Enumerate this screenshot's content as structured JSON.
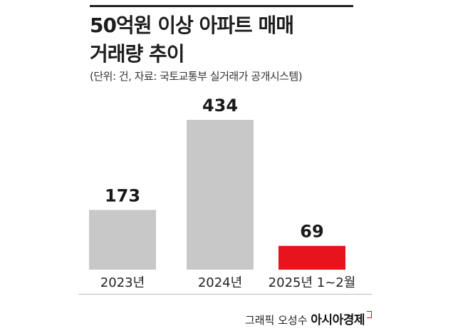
{
  "title_lines": [
    "50억원 이상 아파트 매매",
    "거래량 추이"
  ],
  "subtitle": "(단위: 건, 자료: 국토교통부 실거래가 공개시스템)",
  "credit": {
    "prefix": "그래픽 오성수",
    "brand": "아시아경제"
  },
  "colors": {
    "bar_default": "#c8c8c8",
    "bar_highlight": "#e8141b"
  },
  "chart_data": {
    "type": "bar",
    "title": "50억원 이상 아파트 매매 거래량 추이",
    "subtitle": "(단위: 건, 자료: 국토교통부 실거래가 공개시스템)",
    "categories": [
      "2023년",
      "2024년",
      "2025년 1~2월"
    ],
    "values": [
      173,
      434,
      69
    ],
    "data_labels": [
      "173",
      "434",
      "69"
    ],
    "highlight_index": 2,
    "xlabel": "",
    "ylabel": "",
    "ylim": [
      0,
      434
    ],
    "grid": false,
    "legend": "none"
  }
}
